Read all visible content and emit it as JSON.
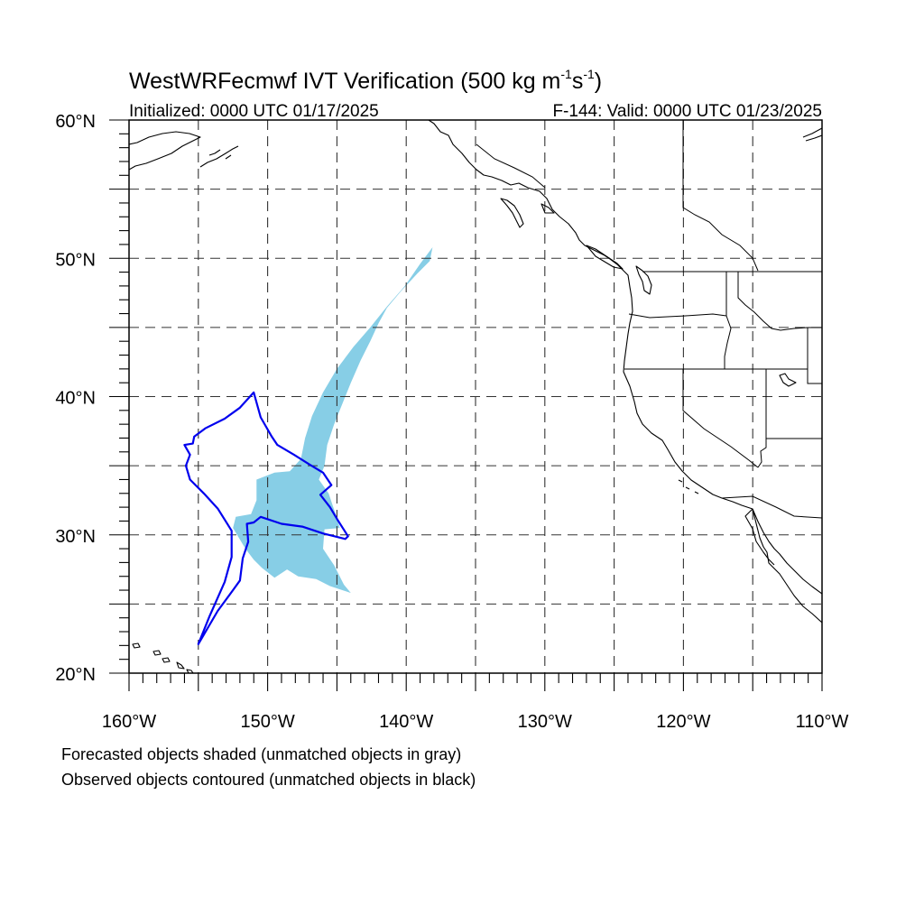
{
  "title": {
    "main": "WestWRFecmwf IVT Verification (500 kg m",
    "exp1": "-1",
    "mid": "s",
    "exp2": "-1",
    "end": ")"
  },
  "subtitle_left": "Initialized: 0000 UTC 01/17/2025",
  "subtitle_right": "F-144: Valid: 0000 UTC 01/23/2025",
  "map": {
    "lon_range": [
      -160,
      -110
    ],
    "lat_range": [
      20,
      60
    ],
    "gridline_lons": [
      -155,
      -150,
      -145,
      -140,
      -135,
      -130,
      -125,
      -120,
      -115
    ],
    "gridline_lats": [
      25,
      30,
      35,
      40,
      45,
      50,
      55
    ],
    "lat_labels": [
      {
        "lat": 60,
        "text": "60°N"
      },
      {
        "lat": 50,
        "text": "50°N"
      },
      {
        "lat": 40,
        "text": "40°N"
      },
      {
        "lat": 30,
        "text": "30°N"
      },
      {
        "lat": 20,
        "text": "20°N"
      }
    ],
    "lon_labels": [
      {
        "lon": -160,
        "text": "160°W"
      },
      {
        "lon": -150,
        "text": "150°W"
      },
      {
        "lon": -140,
        "text": "140°W"
      },
      {
        "lon": -130,
        "text": "130°W"
      },
      {
        "lon": -120,
        "text": "120°W"
      },
      {
        "lon": -110,
        "text": "110°W"
      }
    ],
    "colors": {
      "forecast_fill": "#87CEE6",
      "observed_contour": "#0000EE",
      "coastline": "#000000",
      "grid": "#333333"
    },
    "forecast_object": [
      [
        -138.1,
        50.8
      ],
      [
        -138.3,
        49.8
      ],
      [
        -139.2,
        48.9
      ],
      [
        -140.4,
        47.6
      ],
      [
        -141.4,
        46.4
      ],
      [
        -142.0,
        45.3
      ],
      [
        -142.6,
        44.0
      ],
      [
        -143.3,
        42.6
      ],
      [
        -144.0,
        41.0
      ],
      [
        -144.6,
        39.5
      ],
      [
        -145.2,
        38.0
      ],
      [
        -145.7,
        36.5
      ],
      [
        -145.9,
        35.0
      ],
      [
        -146.3,
        34.0
      ],
      [
        -145.6,
        33.0
      ],
      [
        -145.1,
        31.5
      ],
      [
        -144.8,
        30.5
      ],
      [
        -145.9,
        30.4
      ],
      [
        -146.0,
        29.0
      ],
      [
        -145.2,
        27.8
      ],
      [
        -144.5,
        26.4
      ],
      [
        -144.0,
        25.8
      ],
      [
        -145.5,
        26.3
      ],
      [
        -146.5,
        26.8
      ],
      [
        -147.8,
        27.0
      ],
      [
        -148.6,
        27.5
      ],
      [
        -149.5,
        26.9
      ],
      [
        -150.4,
        27.6
      ],
      [
        -151.0,
        28.2
      ],
      [
        -151.6,
        29.0
      ],
      [
        -152.5,
        30.5
      ],
      [
        -152.3,
        31.3
      ],
      [
        -151.2,
        31.5
      ],
      [
        -150.8,
        32.5
      ],
      [
        -150.8,
        34.0
      ],
      [
        -149.5,
        34.5
      ],
      [
        -148.4,
        34.6
      ],
      [
        -147.6,
        35.5
      ],
      [
        -147.3,
        37.0
      ],
      [
        -146.8,
        38.6
      ],
      [
        -146.0,
        40.3
      ],
      [
        -145.0,
        42.0
      ],
      [
        -143.8,
        43.6
      ],
      [
        -142.6,
        45.0
      ],
      [
        -141.4,
        46.5
      ],
      [
        -140.1,
        48.0
      ],
      [
        -139.0,
        49.6
      ],
      [
        -138.1,
        50.8
      ]
    ],
    "observed_object": [
      [
        -151.0,
        40.3
      ],
      [
        -150.5,
        38.5
      ],
      [
        -149.7,
        37.1
      ],
      [
        -149.3,
        36.5
      ],
      [
        -148.1,
        35.8
      ],
      [
        -147.0,
        35.1
      ],
      [
        -146.0,
        34.5
      ],
      [
        -145.4,
        33.6
      ],
      [
        -146.2,
        32.9
      ],
      [
        -145.5,
        32.0
      ],
      [
        -144.9,
        31.0
      ],
      [
        -144.2,
        29.9
      ],
      [
        -144.4,
        29.7
      ],
      [
        -146.0,
        30.1
      ],
      [
        -147.5,
        30.6
      ],
      [
        -149.0,
        30.8
      ],
      [
        -150.5,
        31.3
      ],
      [
        -151.0,
        30.9
      ],
      [
        -151.5,
        30.8
      ],
      [
        -151.4,
        29.5
      ],
      [
        -151.8,
        28.3
      ],
      [
        -152.0,
        26.7
      ],
      [
        -152.5,
        26.0
      ],
      [
        -153.6,
        24.5
      ],
      [
        -155.0,
        22.1
      ],
      [
        -154.2,
        24.1
      ],
      [
        -153.1,
        26.6
      ],
      [
        -152.6,
        28.4
      ],
      [
        -152.6,
        30.3
      ],
      [
        -153.6,
        31.9
      ],
      [
        -154.6,
        33.0
      ],
      [
        -155.6,
        34.0
      ],
      [
        -155.9,
        35.0
      ],
      [
        -155.6,
        35.8
      ],
      [
        -156.0,
        36.5
      ],
      [
        -155.4,
        36.6
      ],
      [
        -155.3,
        37.1
      ],
      [
        -154.5,
        37.7
      ],
      [
        -153.1,
        38.4
      ],
      [
        -152.0,
        39.2
      ],
      [
        -151.0,
        40.3
      ]
    ]
  },
  "footer": {
    "line1": "Forecasted objects shaded (unmatched objects in gray)",
    "line2": "Observed objects contoured (unmatched objects in black)"
  }
}
